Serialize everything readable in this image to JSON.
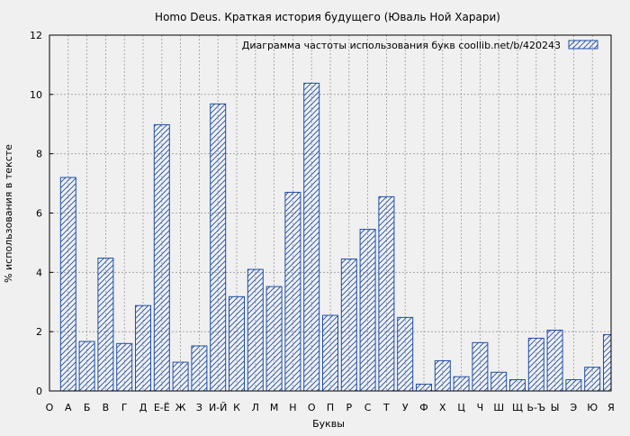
{
  "chart_data": {
    "type": "bar",
    "title": "Homo Deus. Краткая история будущего (Юваль Ной Харари)",
    "xlabel": "Буквы",
    "ylabel": "% использования в тексте",
    "ylim": [
      0,
      12
    ],
    "yticks": [
      "0",
      "2",
      "4",
      "6",
      "8",
      "10",
      "12"
    ],
    "grid": true,
    "legend": {
      "label": "Диаграмма частоты использования букв  coollib.net/b/420243",
      "position": "top-right"
    },
    "categories": [
      "О",
      "А",
      "Б",
      "В",
      "Г",
      "Д",
      "Е-Ё",
      "Ж",
      "З",
      "И-Й",
      "К",
      "Л",
      "М",
      "Н",
      "О",
      "П",
      "Р",
      "С",
      "Т",
      "У",
      "Ф",
      "Х",
      "Ц",
      "Ч",
      "Ш",
      "Щ",
      "Ь-Ъ",
      "Ы",
      "Э",
      "Ю",
      "Я"
    ],
    "values": [
      null,
      7.2,
      1.67,
      4.48,
      1.6,
      2.88,
      8.98,
      0.97,
      1.52,
      9.68,
      3.18,
      4.1,
      3.52,
      6.7,
      10.38,
      2.55,
      4.45,
      5.45,
      6.55,
      2.48,
      0.23,
      1.02,
      0.48,
      1.63,
      0.63,
      0.38,
      1.78,
      2.05,
      0.38,
      0.8,
      1.9
    ],
    "colors": {
      "bar_stroke": "#1f4fa8",
      "bar_hatch": "#1f4fa8",
      "grid": "#9a9a9a",
      "background": "#f0f0f0"
    }
  }
}
